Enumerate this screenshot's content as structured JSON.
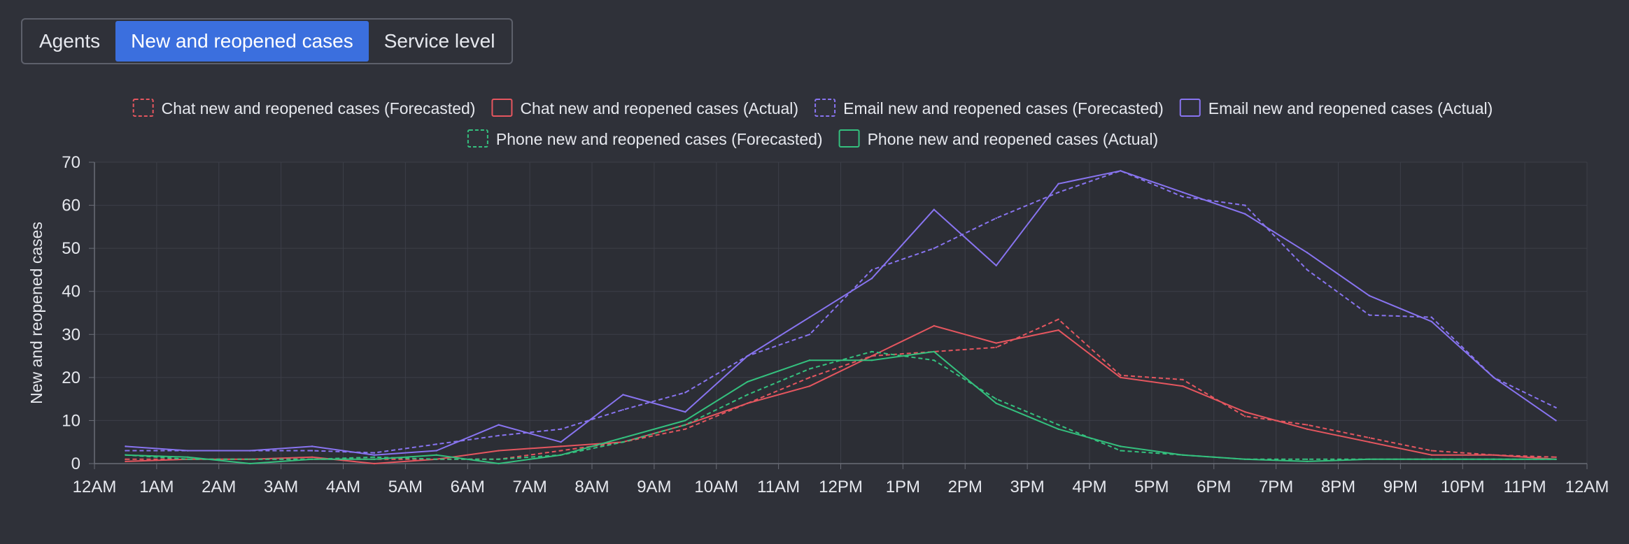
{
  "tabs": [
    {
      "label": "Agents",
      "active": false
    },
    {
      "label": "New and reopened cases",
      "active": true
    },
    {
      "label": "Service level",
      "active": false
    }
  ],
  "colors": {
    "chat": "#e5565f",
    "email": "#8874f0",
    "phone": "#34c07e",
    "grid": "#3c3f48",
    "axis": "#6a6d77"
  },
  "chart_data": {
    "type": "line",
    "title": "",
    "xlabel": "",
    "ylabel": "New and reopened cases",
    "ylim": [
      0,
      70
    ],
    "yticks": [
      0,
      10,
      20,
      30,
      40,
      50,
      60,
      70
    ],
    "xlim": [
      0,
      24
    ],
    "xtick_labels": [
      "12AM",
      "1AM",
      "2AM",
      "3AM",
      "4AM",
      "5AM",
      "6AM",
      "7AM",
      "8AM",
      "9AM",
      "10AM",
      "11AM",
      "12PM",
      "1PM",
      "2PM",
      "3PM",
      "4PM",
      "5PM",
      "6PM",
      "7PM",
      "8PM",
      "9PM",
      "10PM",
      "11PM",
      "12AM"
    ],
    "x": [
      0.5,
      1.5,
      2.5,
      3.5,
      4.5,
      5.5,
      6.5,
      7.5,
      8.5,
      9.5,
      10.5,
      11.5,
      12.5,
      13.5,
      14.5,
      15.5,
      16.5,
      17.5,
      18.5,
      19.5,
      20.5,
      21.5,
      22.5,
      23.5
    ],
    "series": [
      {
        "name": "Chat new and reopened cases (Forecasted)",
        "group": "chat",
        "style": "dashed",
        "values": [
          1,
          1,
          1,
          1,
          1,
          1,
          1,
          3,
          5,
          8,
          14,
          20,
          25,
          26,
          27,
          33.5,
          20.5,
          19.5,
          11,
          9,
          6,
          3,
          2,
          1.5
        ]
      },
      {
        "name": "Chat new and reopened cases (Actual)",
        "group": "chat",
        "style": "solid",
        "values": [
          0.5,
          1,
          1,
          1.5,
          0,
          1,
          3,
          4,
          5,
          9,
          14,
          18,
          25,
          32,
          28,
          31,
          20,
          18,
          12,
          8,
          5,
          2,
          2,
          1
        ]
      },
      {
        "name": "Email new and reopened cases (Forecasted)",
        "group": "email",
        "style": "dashed",
        "values": [
          3,
          3,
          3,
          3,
          2.5,
          4.5,
          6.5,
          8,
          12.5,
          16.5,
          25,
          30,
          45,
          50,
          57,
          63,
          68,
          62,
          60,
          45,
          34.5,
          34,
          20,
          13
        ]
      },
      {
        "name": "Email new and reopened cases (Actual)",
        "group": "email",
        "style": "solid",
        "values": [
          4,
          3,
          3,
          4,
          2,
          3,
          9,
          5,
          16,
          12,
          25,
          34,
          43,
          59,
          46,
          65,
          68,
          63,
          58,
          49,
          39,
          33,
          20,
          10
        ]
      },
      {
        "name": "Phone new and reopened cases (Forecasted)",
        "group": "phone",
        "style": "dashed",
        "values": [
          2,
          1,
          1,
          1,
          1.5,
          1,
          1,
          2,
          5,
          9,
          16,
          22,
          26,
          24,
          15,
          9,
          3,
          2,
          1,
          1,
          1,
          1,
          1,
          1
        ]
      },
      {
        "name": "Phone new and reopened cases (Actual)",
        "group": "phone",
        "style": "solid",
        "values": [
          2,
          1.5,
          0,
          1,
          1,
          2,
          0,
          2,
          6,
          10,
          19,
          24,
          24,
          26,
          14,
          8,
          4,
          2,
          1,
          0.5,
          1,
          1,
          1,
          1
        ]
      }
    ],
    "legend_position": "top-center"
  }
}
